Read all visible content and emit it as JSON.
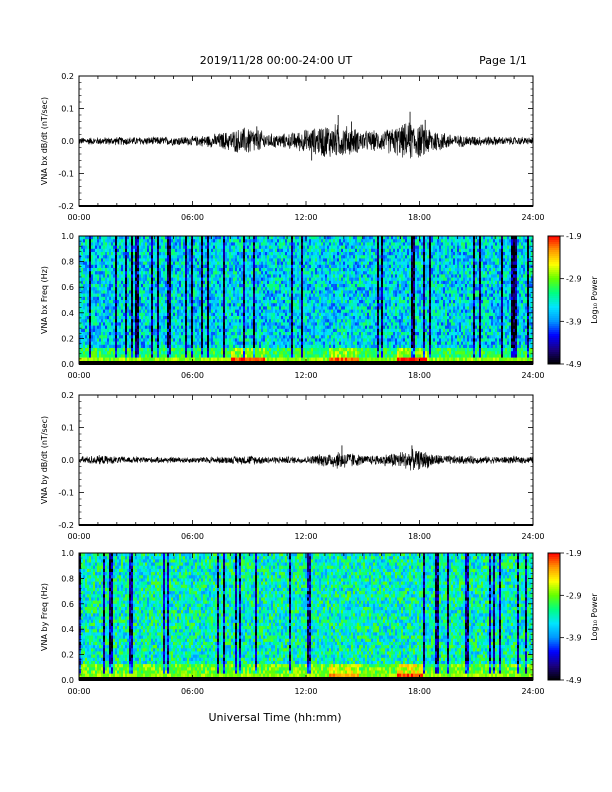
{
  "header": {
    "title": "2019/11/28  00:00-24:00 UT",
    "page": "Page 1/1"
  },
  "xaxis": {
    "label": "Universal Time (hh:mm)",
    "ticks": [
      "00:00",
      "06:00",
      "12:00",
      "18:00",
      "24:00"
    ],
    "range_hours": [
      0,
      24
    ]
  },
  "colorbar": {
    "label": "Log₁₀ Power",
    "ticks": [
      "-1.9",
      "-2.9",
      "-3.9",
      "-4.9"
    ],
    "range": [
      -4.9,
      -1.9
    ],
    "colormap": [
      "#000000",
      "#1a0080",
      "#0000ff",
      "#0096ff",
      "#00e5ff",
      "#00ff80",
      "#64ff00",
      "#ffff00",
      "#ff9600",
      "#ff0000"
    ]
  },
  "chart_data": [
    {
      "type": "line",
      "ylabel": "VNA bx dB/dt (nT/sec)",
      "yticks": [
        "0.2",
        "0.1",
        "0.0",
        "-0.1",
        "-0.2"
      ],
      "ylim": [
        -0.2,
        0.2
      ],
      "x_unit": "hours UT",
      "envelope": {
        "x": [
          0,
          2,
          4,
          6,
          7,
          8,
          9,
          9.5,
          10,
          11,
          12,
          12.5,
          13,
          14,
          15,
          16,
          17,
          17.5,
          18,
          18.5,
          19,
          20,
          22,
          24
        ],
        "amplitude": [
          0.012,
          0.014,
          0.014,
          0.016,
          0.022,
          0.035,
          0.05,
          0.04,
          0.025,
          0.025,
          0.04,
          0.045,
          0.06,
          0.055,
          0.035,
          0.035,
          0.055,
          0.065,
          0.06,
          0.05,
          0.035,
          0.02,
          0.015,
          0.012
        ]
      },
      "peaks": [
        {
          "x": 9.4,
          "y": 0.045
        },
        {
          "x": 12.3,
          "y": -0.06
        },
        {
          "x": 13.7,
          "y": 0.08
        },
        {
          "x": 14.4,
          "y": 0.06
        },
        {
          "x": 17.5,
          "y": 0.09
        },
        {
          "x": 18.3,
          "y": 0.065
        }
      ]
    },
    {
      "type": "heatmap",
      "ylabel": "VNA bx Freq (Hz)",
      "yticks": [
        "1.0",
        "0.8",
        "0.6",
        "0.4",
        "0.2",
        "0.0"
      ],
      "ylim": [
        0,
        1.0
      ],
      "zlim": [
        -4.9,
        -1.9
      ],
      "description_values": {
        "background_power": -3.6,
        "low_freq_band_power": -2.9,
        "enhanced_intervals": [
          {
            "x": [
              8.0,
              9.8
            ],
            "power": -2.1
          },
          {
            "x": [
              13.2,
              14.8
            ],
            "power": -2.2
          },
          {
            "x": [
              16.8,
              18.4
            ],
            "power": -2.0
          }
        ]
      }
    },
    {
      "type": "line",
      "ylabel": "VNA by dB/dt (nT/sec)",
      "yticks": [
        "0.2",
        "0.1",
        "0.0",
        "-0.1",
        "-0.2"
      ],
      "ylim": [
        -0.2,
        0.2
      ],
      "x_unit": "hours UT",
      "envelope": {
        "x": [
          0,
          1,
          2,
          4,
          6,
          8,
          9,
          10,
          12,
          13,
          13.8,
          14.5,
          15,
          16,
          17,
          17.7,
          18.3,
          19,
          20,
          22,
          24
        ],
        "amplitude": [
          0.012,
          0.016,
          0.012,
          0.01,
          0.01,
          0.012,
          0.016,
          0.012,
          0.012,
          0.022,
          0.032,
          0.025,
          0.015,
          0.018,
          0.03,
          0.035,
          0.03,
          0.018,
          0.014,
          0.012,
          0.012
        ]
      },
      "peaks": [
        {
          "x": 13.9,
          "y": 0.045
        },
        {
          "x": 17.6,
          "y": 0.045
        }
      ]
    },
    {
      "type": "heatmap",
      "ylabel": "VNA by Freq (Hz)",
      "yticks": [
        "1.0",
        "0.8",
        "0.6",
        "0.4",
        "0.2",
        "0.0"
      ],
      "ylim": [
        0,
        1.0
      ],
      "zlim": [
        -4.9,
        -1.9
      ],
      "description_values": {
        "background_power": -3.4,
        "low_freq_band_power": -2.9,
        "enhanced_intervals": [
          {
            "x": [
              13.2,
              14.8
            ],
            "power": -2.3
          },
          {
            "x": [
              16.8,
              18.2
            ],
            "power": -2.1
          }
        ]
      }
    }
  ]
}
